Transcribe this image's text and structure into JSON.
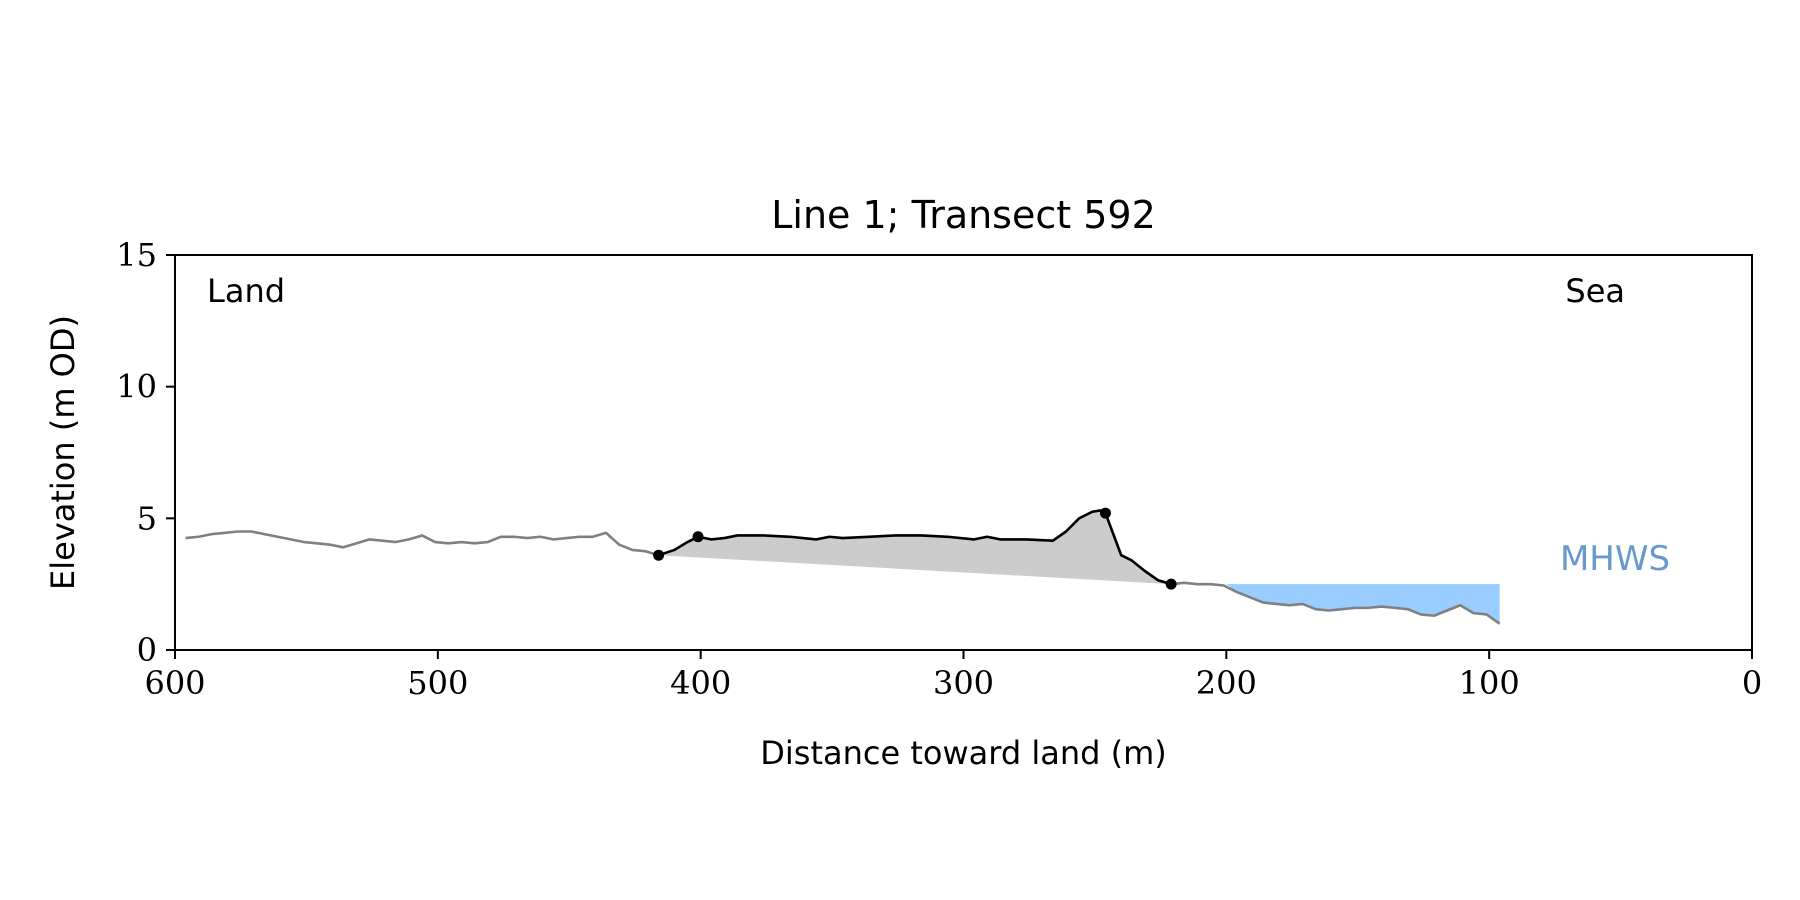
{
  "chart_data": {
    "type": "line",
    "title": "Line 1; Transect 592",
    "xlabel": "Distance toward land (m)",
    "ylabel": "Elevation (m OD)",
    "xlim": [
      600,
      0
    ],
    "ylim": [
      0,
      15
    ],
    "x_ticks": [
      600,
      500,
      400,
      300,
      200,
      100,
      0
    ],
    "y_ticks": [
      0,
      5,
      10,
      15
    ],
    "grid": false,
    "annotations": {
      "land": "Land",
      "sea": "Sea",
      "mhws": "MHWS"
    },
    "mhws_level": 2.5,
    "mhws_x_range": [
      200,
      96
    ],
    "colors": {
      "profile": "#808080",
      "dune": "#000000",
      "dune_fill": "#cccccc",
      "water": "#99ccff",
      "mhws_label": "#6699cc"
    },
    "series": [
      {
        "name": "",
        "x": [
          596,
          591,
          586,
          581,
          576,
          571,
          566,
          561,
          556,
          551,
          546,
          541,
          536,
          531,
          526,
          521,
          516,
          511,
          506,
          501,
          496,
          491,
          486,
          481,
          476,
          471,
          466,
          461,
          456,
          451,
          446,
          441,
          436,
          431,
          426,
          421,
          416
        ],
        "y": [
          4.25,
          4.3,
          4.4,
          4.45,
          4.5,
          4.5,
          4.4,
          4.3,
          4.2,
          4.1,
          4.05,
          4.0,
          3.9,
          4.05,
          4.2,
          4.15,
          4.1,
          4.2,
          4.35,
          4.1,
          4.05,
          4.1,
          4.05,
          4.1,
          4.3,
          4.3,
          4.25,
          4.3,
          4.2,
          4.25,
          4.3,
          4.3,
          4.45,
          4.0,
          3.8,
          3.75,
          3.6
        ]
      },
      {
        "name": "",
        "x": [
          416,
          410,
          405,
          401,
          396,
          391,
          386,
          376,
          366,
          356,
          351,
          346,
          336,
          326,
          316,
          306,
          296,
          291,
          286,
          276,
          266,
          261,
          256,
          251,
          248,
          246,
          243,
          240,
          236,
          231,
          226,
          221
        ],
        "y": [
          3.6,
          3.8,
          4.1,
          4.3,
          4.2,
          4.25,
          4.35,
          4.35,
          4.3,
          4.2,
          4.3,
          4.25,
          4.3,
          4.35,
          4.35,
          4.3,
          4.2,
          4.3,
          4.2,
          4.2,
          4.15,
          4.5,
          5.0,
          5.25,
          5.3,
          5.2,
          4.4,
          3.6,
          3.4,
          3.0,
          2.65,
          2.5
        ]
      },
      {
        "name": "",
        "x": [
          221,
          216,
          211,
          206,
          201,
          196,
          191,
          186,
          181,
          176,
          171,
          166,
          161,
          156,
          151,
          146,
          141,
          136,
          131,
          126,
          121,
          116,
          111,
          106,
          101,
          96
        ],
        "y": [
          2.5,
          2.55,
          2.5,
          2.5,
          2.45,
          2.2,
          2.0,
          1.8,
          1.75,
          1.7,
          1.75,
          1.55,
          1.5,
          1.55,
          1.6,
          1.6,
          1.65,
          1.6,
          1.55,
          1.35,
          1.3,
          1.5,
          1.7,
          1.4,
          1.35,
          1.0
        ]
      }
    ],
    "markers": [
      {
        "x": 416,
        "y": 3.6
      },
      {
        "x": 401,
        "y": 4.3
      },
      {
        "x": 246,
        "y": 5.2
      },
      {
        "x": 221,
        "y": 2.5
      }
    ]
  }
}
